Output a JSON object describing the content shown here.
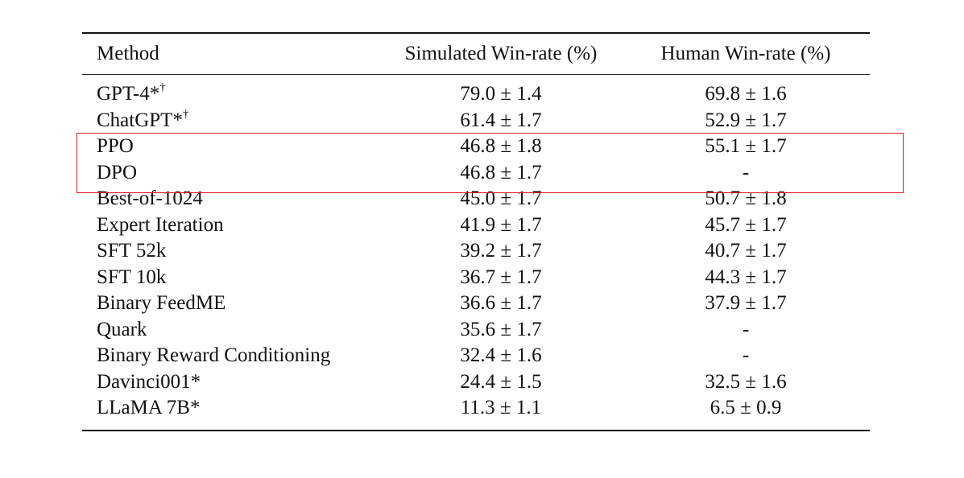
{
  "table": {
    "headers": {
      "method": "Method",
      "simulated": "Simulated Win-rate (%)",
      "human": "Human Win-rate (%)"
    },
    "rows": [
      {
        "method": "GPT-4*",
        "sup": "†",
        "simulated": "79.0 ± 1.4",
        "human": "69.8 ± 1.6"
      },
      {
        "method": "ChatGPT*",
        "sup": "†",
        "simulated": "61.4 ± 1.7",
        "human": "52.9 ± 1.7"
      },
      {
        "method": "PPO",
        "sup": "",
        "simulated": "46.8 ± 1.8",
        "human": "55.1 ± 1.7"
      },
      {
        "method": "DPO",
        "sup": "",
        "simulated": "46.8 ± 1.7",
        "human": "-"
      },
      {
        "method": "Best-of-1024",
        "sup": "",
        "simulated": "45.0 ± 1.7",
        "human": "50.7 ± 1.8"
      },
      {
        "method": "Expert Iteration",
        "sup": "",
        "simulated": "41.9 ± 1.7",
        "human": "45.7 ± 1.7"
      },
      {
        "method": "SFT 52k",
        "sup": "",
        "simulated": "39.2 ± 1.7",
        "human": "40.7 ± 1.7"
      },
      {
        "method": "SFT 10k",
        "sup": "",
        "simulated": "36.7 ± 1.7",
        "human": "44.3 ± 1.7"
      },
      {
        "method": "Binary FeedME",
        "sup": "",
        "simulated": "36.6 ± 1.7",
        "human": "37.9 ± 1.7"
      },
      {
        "method": "Quark",
        "sup": "",
        "simulated": "35.6 ± 1.7",
        "human": "-"
      },
      {
        "method": "Binary Reward Conditioning",
        "sup": "",
        "simulated": "32.4 ± 1.6",
        "human": "-"
      },
      {
        "method": "Davinci001*",
        "sup": "",
        "simulated": "24.4 ± 1.5",
        "human": "32.5 ± 1.6"
      },
      {
        "method": "LLaMA 7B*",
        "sup": "",
        "simulated": "11.3 ± 1.1",
        "human": "6.5 ± 0.9"
      }
    ]
  },
  "highlight": {
    "color": "#e01b1b",
    "rows": [
      "PPO",
      "DPO"
    ]
  }
}
